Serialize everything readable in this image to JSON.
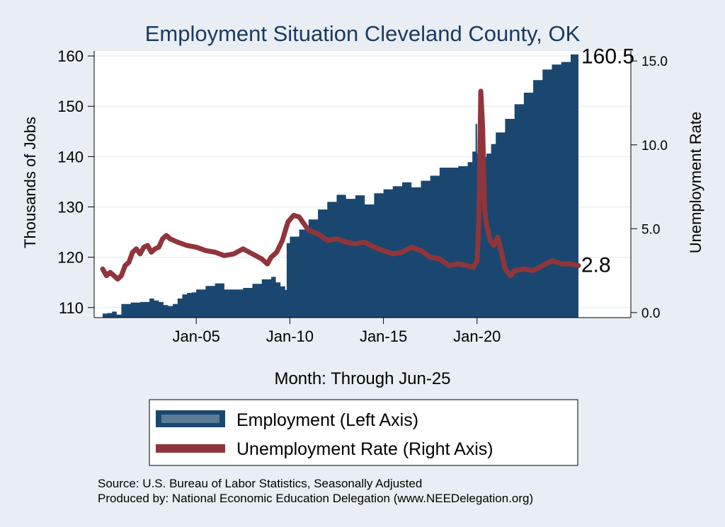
{
  "chart_data": {
    "type": "area",
    "title": "Employment Situation Cleveland  County, OK",
    "xlabel": "Month: Through Jun-25",
    "ylabel_left": "Thousands of Jobs",
    "ylabel_right": "Unemployment Rate",
    "x_range": [
      2000.0,
      2025.4167
    ],
    "ylim_left": [
      108,
      161
    ],
    "ylim_right": [
      -0.3,
      15.6
    ],
    "x_ticks": [
      {
        "value": 2005,
        "label": "Jan-05"
      },
      {
        "value": 2010,
        "label": "Jan-10"
      },
      {
        "value": 2015,
        "label": "Jan-15"
      },
      {
        "value": 2020,
        "label": "Jan-20"
      }
    ],
    "y_ticks_left": [
      {
        "value": 110,
        "label": "110"
      },
      {
        "value": 120,
        "label": "120"
      },
      {
        "value": 130,
        "label": "130"
      },
      {
        "value": 140,
        "label": "140"
      },
      {
        "value": 150,
        "label": "150"
      },
      {
        "value": 160,
        "label": "160"
      }
    ],
    "y_ticks_right": [
      {
        "value": 0,
        "label": "0.0"
      },
      {
        "value": 5,
        "label": "5.0"
      },
      {
        "value": 10,
        "label": "10.0"
      },
      {
        "value": 15,
        "label": "15.0"
      }
    ],
    "series": [
      {
        "name": "Employment (Left Axis)",
        "axis": "left",
        "kind": "area",
        "color": "#1a476f",
        "x": [
          2000.0,
          2000.25,
          2000.5,
          2000.75,
          2001.0,
          2001.5,
          2002.0,
          2002.5,
          2002.75,
          2003.0,
          2003.25,
          2003.5,
          2003.75,
          2004.0,
          2004.25,
          2004.5,
          2004.75,
          2005.0,
          2005.5,
          2006.0,
          2006.5,
          2007.0,
          2007.5,
          2008.0,
          2008.5,
          2009.0,
          2009.25,
          2009.5,
          2009.75,
          2009.83,
          2010.0,
          2010.5,
          2011.0,
          2011.5,
          2012.0,
          2012.5,
          2013.0,
          2013.5,
          2014.0,
          2014.5,
          2015.0,
          2015.5,
          2016.0,
          2016.5,
          2017.0,
          2017.5,
          2018.0,
          2018.5,
          2019.0,
          2019.5,
          2019.75,
          2019.92,
          2020.0,
          2020.25,
          2020.5,
          2020.75,
          2021.0,
          2021.5,
          2022.0,
          2022.5,
          2023.0,
          2023.5,
          2024.0,
          2024.5,
          2025.0,
          2025.4167
        ],
        "values": [
          108.8,
          108.9,
          109.2,
          108.6,
          110.7,
          111.0,
          111.1,
          111.8,
          111.4,
          111.1,
          110.5,
          110.3,
          110.7,
          111.8,
          112.6,
          112.9,
          113.0,
          113.6,
          114.3,
          114.8,
          113.6,
          113.6,
          113.9,
          114.7,
          115.6,
          116.1,
          115.0,
          114.2,
          113.5,
          122.8,
          124.1,
          125.5,
          127.5,
          129.5,
          131.0,
          132.4,
          131.6,
          132.3,
          130.5,
          132.7,
          133.5,
          134.1,
          134.9,
          133.9,
          135.2,
          136.2,
          137.8,
          137.8,
          138.1,
          138.9,
          141.0,
          146.5,
          140.5,
          139.9,
          140.6,
          142.5,
          144.8,
          147.5,
          150.4,
          152.7,
          155.2,
          157.3,
          158.3,
          158.8,
          160.3,
          160.5
        ]
      },
      {
        "name": "Unemployment Rate (Right Axis)",
        "axis": "right",
        "kind": "line",
        "color": "#90353b",
        "x": [
          2000.0,
          2000.2,
          2000.4,
          2000.6,
          2000.8,
          2001.0,
          2001.2,
          2001.4,
          2001.6,
          2001.8,
          2002.0,
          2002.2,
          2002.4,
          2002.6,
          2002.8,
          2003.0,
          2003.2,
          2003.4,
          2003.6,
          2003.8,
          2004.0,
          2004.5,
          2005.0,
          2005.5,
          2006.0,
          2006.5,
          2007.0,
          2007.5,
          2008.0,
          2008.5,
          2008.8,
          2009.0,
          2009.3,
          2009.6,
          2009.9,
          2010.2,
          2010.5,
          2011.0,
          2011.5,
          2012.0,
          2012.5,
          2013.0,
          2013.5,
          2014.0,
          2014.5,
          2015.0,
          2015.5,
          2016.0,
          2016.5,
          2017.0,
          2017.5,
          2018.0,
          2018.5,
          2019.0,
          2019.5,
          2019.8,
          2020.0,
          2020.1,
          2020.2,
          2020.3,
          2020.4,
          2020.5,
          2020.7,
          2020.9,
          2021.1,
          2021.3,
          2021.5,
          2021.8,
          2022.0,
          2022.5,
          2023.0,
          2023.5,
          2024.0,
          2024.5,
          2025.0,
          2025.4167
        ],
        "values": [
          2.6,
          2.2,
          2.4,
          2.2,
          2.0,
          2.2,
          2.8,
          3.0,
          3.6,
          3.8,
          3.5,
          3.9,
          4.0,
          3.6,
          3.8,
          3.9,
          4.4,
          4.6,
          4.4,
          4.3,
          4.2,
          4.0,
          3.9,
          3.7,
          3.6,
          3.4,
          3.5,
          3.8,
          3.5,
          3.2,
          2.9,
          3.3,
          3.6,
          4.3,
          5.4,
          5.8,
          5.7,
          4.9,
          4.7,
          4.3,
          4.4,
          4.2,
          4.1,
          4.2,
          3.9,
          3.7,
          3.5,
          3.6,
          3.9,
          3.7,
          3.3,
          3.2,
          2.8,
          2.9,
          2.8,
          2.7,
          3.1,
          5.5,
          13.2,
          11.0,
          6.2,
          5.3,
          4.3,
          4.0,
          4.5,
          3.6,
          2.6,
          2.2,
          2.5,
          2.6,
          2.5,
          2.8,
          3.1,
          2.9,
          2.9,
          2.8
        ]
      }
    ],
    "end_labels": [
      {
        "series": "Employment (Left Axis)",
        "text": "160.5"
      },
      {
        "series": "Unemployment Rate (Right Axis)",
        "text": "2.8"
      }
    ],
    "legend": {
      "placement": "bottom",
      "entries": [
        "Employment (Left Axis)",
        "Unemployment Rate (Right Axis)"
      ]
    }
  },
  "footer": {
    "source": "Source: U.S. Bureau of Labor Statistics, Seasonally Adjusted",
    "produced_by": "Produced by: National Economic Education Delegation (www.NEEDelegation.org)"
  }
}
